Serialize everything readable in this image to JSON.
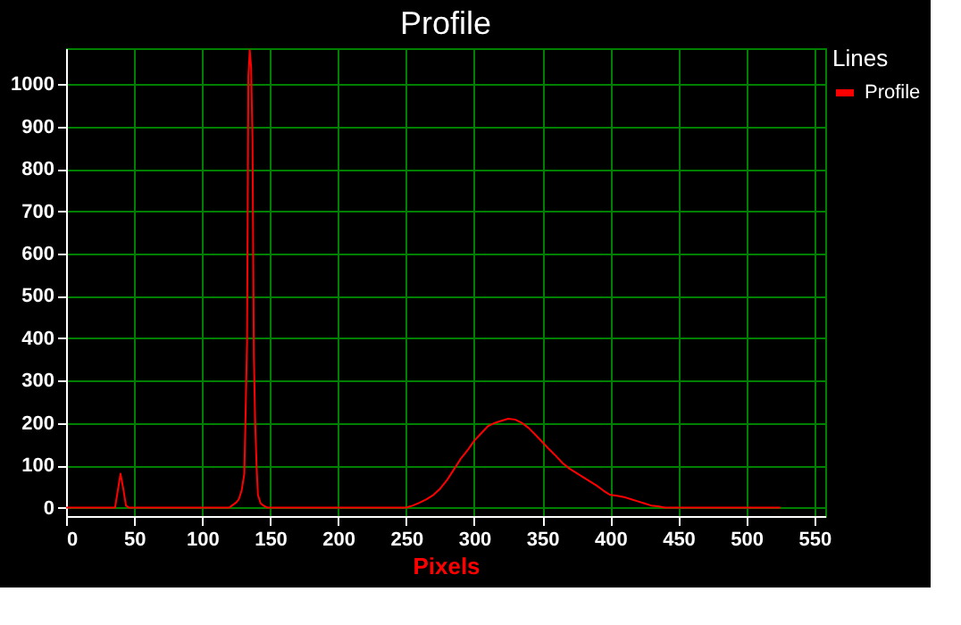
{
  "chart_data": {
    "type": "line",
    "title": "Profile",
    "xlabel": "Pixels",
    "legend_title": "Lines",
    "legend": "top right",
    "grid": true,
    "marker": "none",
    "line_style": "solid",
    "xlim": [
      0,
      558
    ],
    "ylim": [
      -20,
      1085
    ],
    "xticks": [
      0,
      50,
      100,
      150,
      200,
      250,
      300,
      350,
      400,
      450,
      500,
      550
    ],
    "yticks": [
      0,
      100,
      200,
      300,
      400,
      500,
      600,
      700,
      800,
      900,
      1000
    ],
    "series": [
      {
        "name": "Profile",
        "color": "#ff0000",
        "x": [
          0,
          34,
          36,
          38,
          40,
          42,
          44,
          46,
          100,
          120,
          122,
          125,
          127,
          129,
          130,
          131,
          132,
          133,
          134,
          135,
          136,
          137,
          138,
          139,
          140,
          141,
          143,
          145,
          148,
          160,
          200,
          250,
          255,
          260,
          265,
          270,
          275,
          280,
          285,
          290,
          295,
          300,
          305,
          310,
          315,
          320,
          325,
          330,
          335,
          340,
          345,
          350,
          355,
          360,
          365,
          370,
          375,
          380,
          385,
          390,
          395,
          400,
          405,
          410,
          415,
          420,
          425,
          430,
          435,
          440,
          460,
          480,
          500,
          525
        ],
        "values": [
          0,
          0,
          0,
          40,
          80,
          45,
          5,
          0,
          0,
          0,
          5,
          12,
          20,
          40,
          60,
          80,
          230,
          390,
          1020,
          1080,
          1040,
          870,
          360,
          200,
          100,
          30,
          10,
          5,
          0,
          0,
          0,
          0,
          5,
          12,
          20,
          30,
          45,
          65,
          90,
          115,
          135,
          158,
          175,
          192,
          200,
          205,
          210,
          208,
          200,
          188,
          172,
          155,
          138,
          122,
          105,
          92,
          82,
          72,
          62,
          52,
          40,
          30,
          28,
          25,
          20,
          15,
          10,
          5,
          3,
          0,
          0,
          0,
          0,
          0
        ]
      }
    ]
  }
}
